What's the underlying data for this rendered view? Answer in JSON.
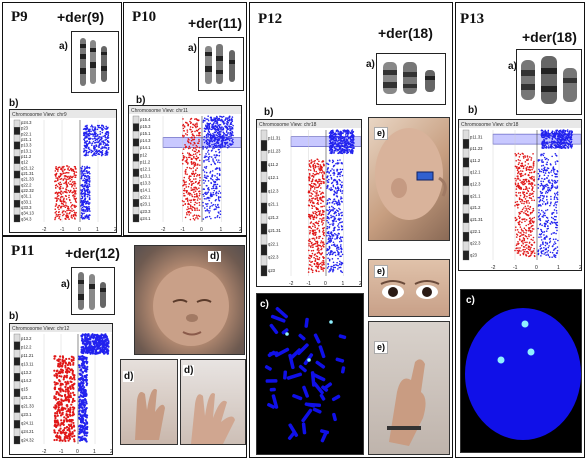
{
  "panels": {
    "p9": {
      "id": "P9",
      "der": "+der(9)",
      "sub_a": "a)",
      "sub_b": "b)",
      "chrom_view": "Chromosome View: chr9",
      "bands": [
        "p24.3",
        "p23",
        "p22.1",
        "p21.1",
        "p13.3",
        "p13.1",
        "p11.2",
        "q12",
        "q21.12",
        "q21.31",
        "q21.33",
        "q22.2",
        "q22.32",
        "q31.1",
        "q33.1",
        "q33.3",
        "q34.13",
        "q34.3"
      ],
      "axis_ticks": [
        "-2",
        "-1",
        "0",
        "1",
        "2"
      ]
    },
    "p10": {
      "id": "P10",
      "der": "+der(11)",
      "sub_a": "a)",
      "sub_b": "b)",
      "chrom_view": "Chromosome View: chr11",
      "bands": [
        "p15.4",
        "p15.3",
        "p15.1",
        "p14.3",
        "p14.1",
        "p12",
        "p11.2",
        "q12.1",
        "q13.1",
        "q13.3",
        "q14.1",
        "q22.1",
        "q23.1",
        "q23.3",
        "q24.1"
      ],
      "axis_ticks": [
        "-2",
        "-1",
        "0",
        "1",
        "2"
      ]
    },
    "p11": {
      "id": "P11",
      "der": "+der(12)",
      "sub_a": "a)",
      "sub_b": "b)",
      "sub_d1": "d)",
      "sub_d2": "d)",
      "sub_d3": "d)",
      "chrom_view": "Chromosome View: chr12",
      "bands": [
        "p13.2",
        "p12.2",
        "p11.21",
        "q13.11",
        "q13.2",
        "q14.2",
        "q15",
        "q21.2",
        "q21.33",
        "q23.1",
        "q24.11",
        "q24.21",
        "q24.32"
      ],
      "axis_ticks": [
        "-2",
        "-1",
        "0",
        "1",
        "2"
      ]
    },
    "p12": {
      "id": "P12",
      "der": "+der(18)",
      "sub_a": "a)",
      "sub_b": "b)",
      "sub_c": "c)",
      "sub_e1": "e)",
      "sub_e2": "e)",
      "sub_e3": "e)",
      "chrom_view": "Chromosome View: chr18",
      "bands": [
        "p11.31",
        "p11.23",
        "q11.2",
        "q12.1",
        "q12.3",
        "q21.1",
        "q21.2",
        "q21.31",
        "q22.1",
        "q22.3",
        "q23"
      ],
      "axis_ticks": [
        "-2",
        "-1",
        "0",
        "1",
        "2"
      ]
    },
    "p13": {
      "id": "P13",
      "der": "+der(18)",
      "sub_a": "a)",
      "sub_b": "b)",
      "sub_c": "c)",
      "chrom_view": "Chromosome View: chr18",
      "bands": [
        "p11.31",
        "p11.23",
        "q11.2",
        "q12.1",
        "q12.3",
        "q21.1",
        "q21.2",
        "q21.31",
        "q22.1",
        "q22.3",
        "q23"
      ],
      "axis_ticks": [
        "-2",
        "-1",
        "0",
        "1",
        "2"
      ]
    }
  },
  "colors": {
    "gain": "#2222ee",
    "loss": "#e01818",
    "highlight": "#c8c8ff",
    "fish_bg": "#1010e8",
    "fish_dot": "#8ff0ff"
  }
}
